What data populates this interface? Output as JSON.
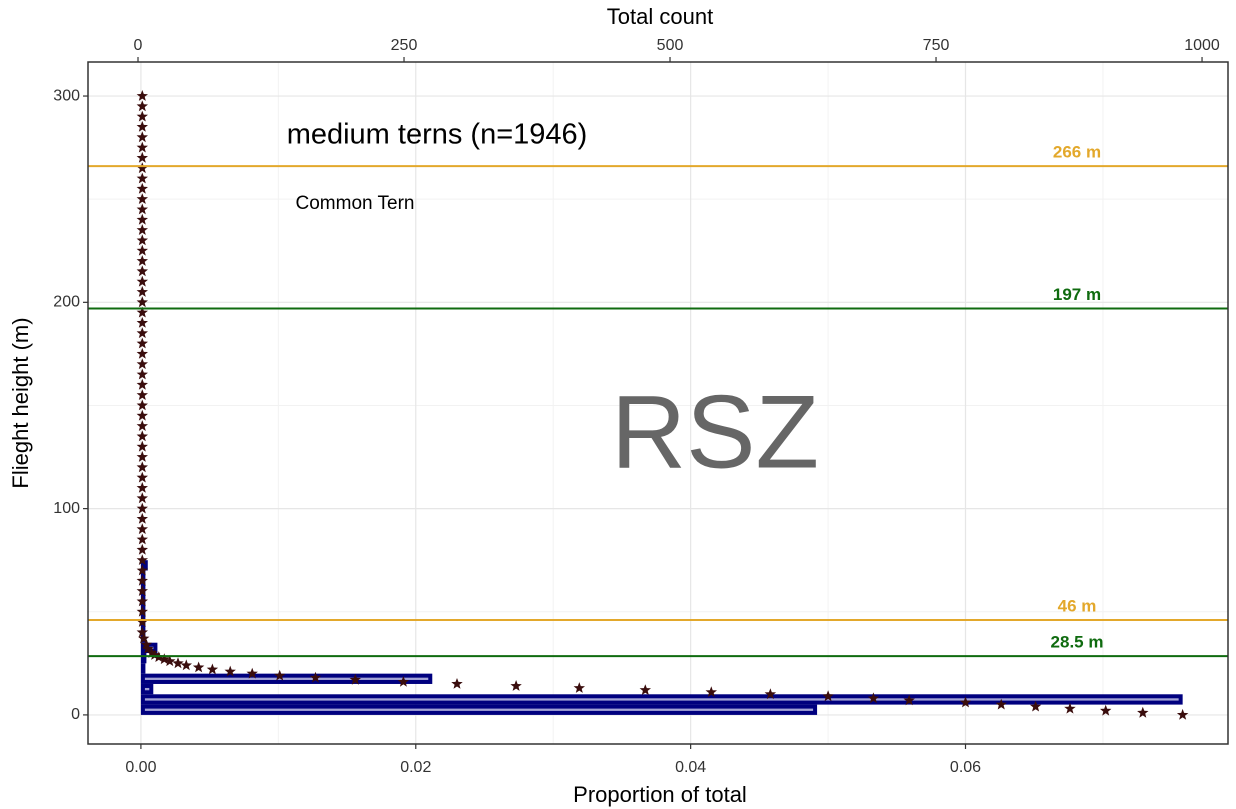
{
  "chart_data": {
    "type": "histogram",
    "orientation": "horizontal",
    "xlabel": "Proportion of total",
    "ylabel": "Flieght height (m)",
    "x2label": "Total count",
    "xlim": [
      -0.00385,
      0.0791
    ],
    "xticks": [
      {
        "value": 0,
        "label": "0.00"
      },
      {
        "value": 0.02,
        "label": "0.02"
      },
      {
        "value": 0.04,
        "label": "0.04"
      },
      {
        "value": 0.06,
        "label": "0.06"
      }
    ],
    "xminor": [
      0.01,
      0.03,
      0.05,
      0.07
    ],
    "ylim": [
      -14.1,
      316.5
    ],
    "yticks": [
      0,
      100,
      200,
      300
    ],
    "yminor": [
      50,
      150,
      250
    ],
    "x2lim": [
      -47,
      1024.4
    ],
    "x2ticks": [
      0,
      250,
      500,
      750,
      1000
    ],
    "grid": true,
    "bins": [
      0,
      5,
      10,
      15,
      20,
      25,
      30,
      35,
      40,
      45,
      50,
      55,
      60,
      65,
      70,
      75
    ],
    "values": [
      0.0492,
      0.0758,
      0.0009,
      0.0212,
      0.0002,
      0.0004,
      0.0012,
      0.0003,
      0.0002,
      0.0002,
      0.0001,
      0.0001,
      0.0001,
      0.0001,
      0.0005
    ],
    "color": "#a3a3d6",
    "edgecolor": "#00007f",
    "points": {
      "color": "#3a0d0d",
      "x": [
        0.0758,
        0.0729,
        0.0702,
        0.0676,
        0.0651,
        0.0626,
        0.06,
        0.0559,
        0.0533,
        0.05,
        0.0458,
        0.0415,
        0.0367,
        0.0319,
        0.0273,
        0.023,
        0.0191,
        0.0156,
        0.0127,
        0.0101,
        0.0081,
        0.0065,
        0.0052,
        0.0042,
        0.0033,
        0.0027,
        0.0021,
        0.0017,
        0.0013,
        0.001,
        0.0008,
        0.0005,
        0.0004,
        0.0002,
        0.0001,
        0.0001,
        0.0001,
        0.0001,
        0.0001,
        0.0001,
        0.0001,
        0.0001,
        0.0001,
        0.0001,
        0.0001,
        0.0001,
        0.0001,
        0.0001,
        0.0001,
        0.0001,
        0.0001,
        0.0001,
        0.0001,
        0.0001,
        0.0001,
        0.0001,
        0.0001,
        0.0001,
        0.0001,
        0.0001,
        0.0001,
        0.0001,
        0.0001,
        0.0001,
        0.0001,
        0.0001,
        0.0001,
        0.0001,
        0.0001,
        0.0001,
        0.0001,
        0.0001,
        0.0001,
        0.0001,
        0.0001,
        0.0001,
        0.0001,
        0.0001,
        0.0001,
        0.0001,
        0.0001,
        0.0001,
        0.0001,
        0.0001,
        0.0001,
        0.0001,
        0.0001
      ],
      "y": [
        0,
        1,
        2,
        3,
        4,
        5,
        6,
        7,
        8,
        9,
        10,
        11,
        12,
        13,
        14,
        15,
        16,
        17,
        18,
        19,
        20,
        21,
        22,
        23,
        24,
        25,
        26,
        27,
        28,
        29,
        30,
        32,
        34,
        37,
        40,
        45,
        50,
        55,
        60,
        65,
        70,
        75,
        80,
        85,
        90,
        95,
        100,
        105,
        110,
        115,
        120,
        125,
        130,
        135,
        140,
        145,
        150,
        155,
        160,
        165,
        170,
        175,
        180,
        185,
        190,
        195,
        200,
        205,
        210,
        215,
        220,
        225,
        230,
        235,
        240,
        245,
        250,
        255,
        260,
        265,
        270,
        275,
        280,
        285,
        290,
        295,
        300
      ]
    },
    "hlines": [
      {
        "value": 266,
        "label": "266 m",
        "color": "#e3a82b"
      },
      {
        "value": 197,
        "label": "197 m",
        "color": "#0f6b0f"
      },
      {
        "value": 46,
        "label": "46 m",
        "color": "#e3a82b"
      },
      {
        "value": 28.5,
        "label": "28.5 m",
        "color": "#0f6b0f"
      }
    ],
    "annotations": [
      {
        "text": "medium terns (n=1946)"
      },
      {
        "text": "Common Tern"
      },
      {
        "text": "RSZ"
      }
    ]
  }
}
